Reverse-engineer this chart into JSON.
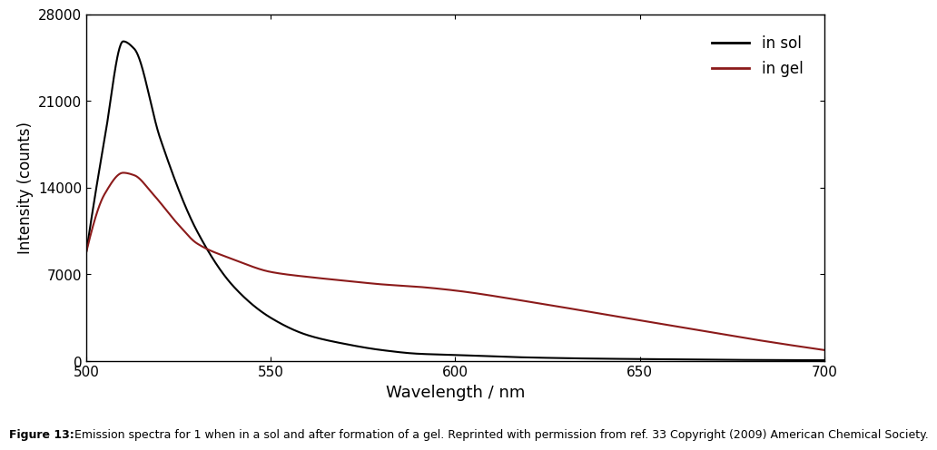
{
  "xlim": [
    500,
    700
  ],
  "ylim": [
    0,
    28000
  ],
  "xticks": [
    500,
    550,
    600,
    650,
    700
  ],
  "yticks": [
    0,
    7000,
    14000,
    21000,
    28000
  ],
  "xlabel": "Wavelength / nm",
  "ylabel": "Intensity (counts)",
  "sol_color": "#000000",
  "gel_color": "#8B1A1A",
  "sol_label": "in sol",
  "gel_label": "in gel",
  "sol_keypoints_x": [
    500,
    505,
    510,
    513,
    520,
    530,
    540,
    550,
    560,
    570,
    580,
    590,
    600,
    620,
    640,
    660,
    680,
    700
  ],
  "sol_keypoints_y": [
    8800,
    18000,
    25800,
    25200,
    18000,
    10500,
    6000,
    3500,
    2100,
    1400,
    900,
    600,
    500,
    300,
    200,
    150,
    100,
    80
  ],
  "gel_keypoints_x": [
    500,
    505,
    510,
    513,
    518,
    525,
    530,
    540,
    550,
    560,
    570,
    580,
    590,
    600,
    620,
    640,
    660,
    680,
    700
  ],
  "gel_keypoints_y": [
    8800,
    13500,
    15200,
    15000,
    13500,
    11000,
    9500,
    8200,
    7200,
    6800,
    6500,
    6200,
    6000,
    5700,
    4800,
    3800,
    2800,
    1800,
    900
  ],
  "figure_caption_bold": "Figure 13:",
  "figure_caption_rest": " Emission spectra for 1 when in a sol and after formation of a gel. Reprinted with permission from ref. 33 Copyright (2009) American Chemical Society.",
  "caption_fontsize": 9,
  "background_color": "#ffffff",
  "linewidth": 1.5
}
